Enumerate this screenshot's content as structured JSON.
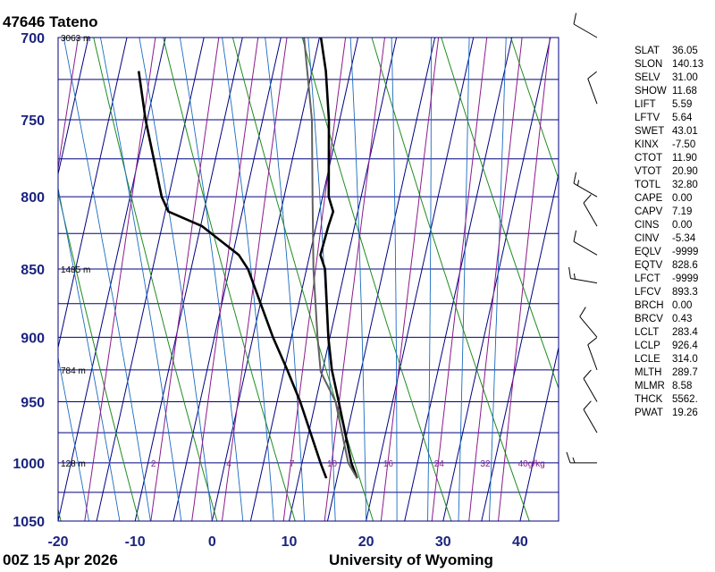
{
  "header": {
    "station": "47646  Tateno"
  },
  "footer": {
    "time": "00Z 15 Apr 2026",
    "source": "University of Wyoming"
  },
  "colors": {
    "axis": "#000080",
    "isotherm": "#00008b",
    "dry_adiabat": "#1f8c1f",
    "moist_adiabat": "#1a6bbf",
    "mixing_ratio": "#8b1a8b",
    "sounding": "#000000",
    "parcel": "#606060"
  },
  "chart_data": {
    "type": "line",
    "title": "47646  Tateno",
    "xlabel": "",
    "ylabel": "",
    "x_ticks": [
      -20,
      -10,
      0,
      10,
      20,
      30,
      40
    ],
    "y_ticks": [
      700,
      750,
      800,
      850,
      900,
      950,
      1000,
      1050
    ],
    "xlim": [
      -20,
      45
    ],
    "ylim": [
      700,
      1050
    ],
    "y_scale": "log-pressure",
    "height_labels": [
      {
        "p": 700,
        "text": "3063 m"
      },
      {
        "p": 850,
        "text": "1485 m"
      },
      {
        "p": 925,
        "text": "784 m"
      },
      {
        "p": 1000,
        "text": "128 m"
      }
    ],
    "mixing_ratio_labels": [
      {
        "t": -9.3,
        "text": "2"
      },
      {
        "t": 0.5,
        "text": "4"
      },
      {
        "t": 8.7,
        "text": "7"
      },
      {
        "t": 13.9,
        "text": "10"
      },
      {
        "t": 21.2,
        "text": "16"
      },
      {
        "t": 27.8,
        "text": "24"
      },
      {
        "t": 33.8,
        "text": "32"
      },
      {
        "t": 39.8,
        "text": "40g/kg"
      }
    ],
    "series": [
      {
        "values": [
          [
            1013,
            17.6
          ],
          [
            1000,
            16.4
          ],
          [
            950,
            13.0
          ],
          [
            925,
            11.2
          ],
          [
            900,
            9.8
          ],
          [
            850,
            7.4
          ],
          [
            840,
            6.4
          ],
          [
            820,
            6.6
          ],
          [
            810,
            6.8
          ],
          [
            800,
            5.8
          ],
          [
            750,
            3.6
          ],
          [
            720,
            1.8
          ],
          [
            700,
            0.2
          ]
        ]
      },
      {
        "values": [
          [
            1013,
            13.6
          ],
          [
            1000,
            12.4
          ],
          [
            950,
            8.0
          ],
          [
            925,
            5.4
          ],
          [
            900,
            2.6
          ],
          [
            850,
            -2.6
          ],
          [
            840,
            -4.2
          ],
          [
            820,
            -9.8
          ],
          [
            810,
            -14.6
          ],
          [
            800,
            -15.9
          ],
          [
            750,
            -20.2
          ],
          [
            720,
            -22.5
          ]
        ]
      },
      {
        "values": [
          [
            1013,
            17.6
          ],
          [
            1000,
            16.0
          ],
          [
            950,
            12.6
          ],
          [
            926.4,
            9.8
          ],
          [
            900,
            8.4
          ],
          [
            850,
            5.9
          ],
          [
            800,
            3.7
          ],
          [
            750,
            1.4
          ],
          [
            700,
            -2.0
          ]
        ]
      }
    ]
  },
  "indices": [
    {
      "name": "SLAT",
      "value": "36.05"
    },
    {
      "name": "SLON",
      "value": "140.13"
    },
    {
      "name": "SELV",
      "value": "31.00"
    },
    {
      "name": "SHOW",
      "value": "11.68"
    },
    {
      "name": "LIFT",
      "value": "5.59"
    },
    {
      "name": "LFTV",
      "value": "5.64"
    },
    {
      "name": "SWET",
      "value": "43.01"
    },
    {
      "name": "KINX",
      "value": "-7.50"
    },
    {
      "name": "CTOT",
      "value": "11.90"
    },
    {
      "name": "VTOT",
      "value": "20.90"
    },
    {
      "name": "TOTL",
      "value": "32.80"
    },
    {
      "name": "CAPE",
      "value": "0.00"
    },
    {
      "name": "CAPV",
      "value": "7.19"
    },
    {
      "name": "CINS",
      "value": "0.00"
    },
    {
      "name": "CINV",
      "value": "-5.34"
    },
    {
      "name": "EQLV",
      "value": "-9999"
    },
    {
      "name": "EQTV",
      "value": "828.6"
    },
    {
      "name": "LFCT",
      "value": "-9999"
    },
    {
      "name": "LFCV",
      "value": "893.3"
    },
    {
      "name": "BRCH",
      "value": "0.00"
    },
    {
      "name": "BRCV",
      "value": "0.43"
    },
    {
      "name": "LCLT",
      "value": "283.4"
    },
    {
      "name": "LCLP",
      "value": "926.4"
    },
    {
      "name": "LCLE",
      "value": "314.0"
    },
    {
      "name": "MLTH",
      "value": "289.7"
    },
    {
      "name": "MLMR",
      "value": "8.58"
    },
    {
      "name": "THCK",
      "value": "5562."
    },
    {
      "name": "PWAT",
      "value": "19.26"
    }
  ],
  "wind_barbs": [
    {
      "p": 1000,
      "dir": 270,
      "spd": 15
    },
    {
      "p": 975,
      "dir": 330,
      "spd": 10
    },
    {
      "p": 950,
      "dir": 330,
      "spd": 10
    },
    {
      "p": 925,
      "dir": 340,
      "spd": 10
    },
    {
      "p": 900,
      "dir": 320,
      "spd": 10
    },
    {
      "p": 860,
      "dir": 280,
      "spd": 15
    },
    {
      "p": 840,
      "dir": 300,
      "spd": 10
    },
    {
      "p": 820,
      "dir": 330,
      "spd": 10
    },
    {
      "p": 800,
      "dir": 300,
      "spd": 15
    },
    {
      "p": 740,
      "dir": 340,
      "spd": 10
    },
    {
      "p": 700,
      "dir": 300,
      "spd": 10
    }
  ]
}
